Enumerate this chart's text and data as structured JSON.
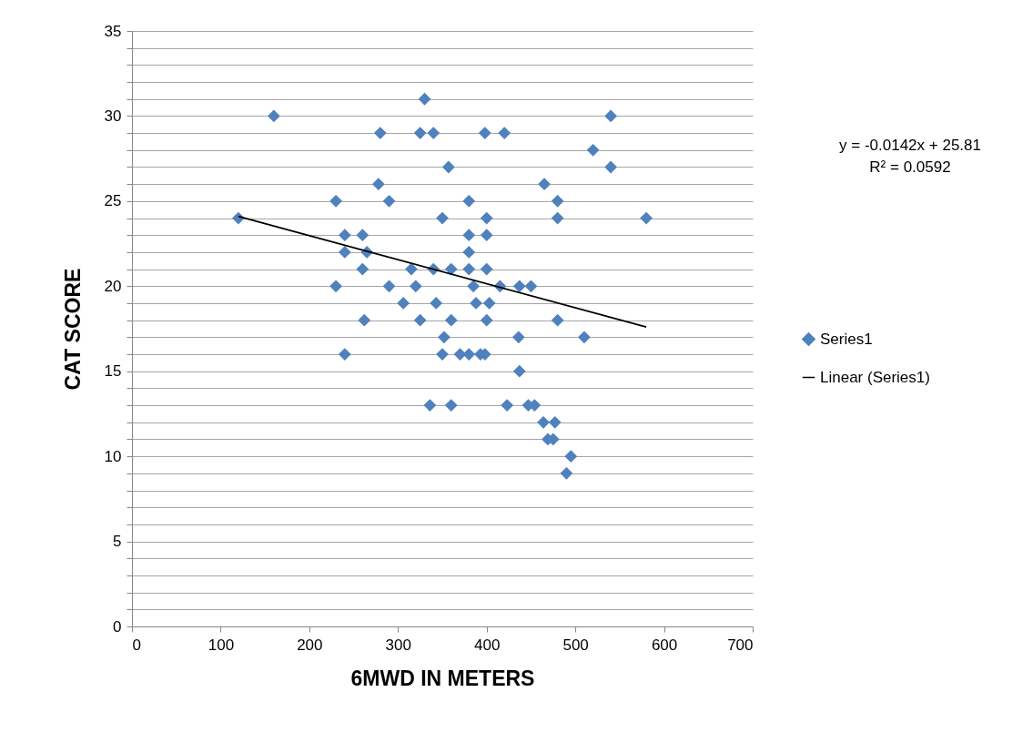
{
  "chart_data": {
    "type": "scatter",
    "xlabel": "6MWD IN METERS",
    "ylabel": "CAT SCORE",
    "annotations": [
      "y = -0.0142x + 25.81",
      "R² = 0.0592"
    ],
    "xlim": [
      0,
      700
    ],
    "xticks": [
      0,
      100,
      200,
      300,
      400,
      500,
      600,
      700
    ],
    "ylim": [
      0,
      35
    ],
    "yticks": [
      0,
      {
        "value": 1,
        "label": null
      },
      {
        "value": 2,
        "label": null
      },
      {
        "value": 3,
        "label": null
      },
      {
        "value": 4,
        "label": null
      },
      5,
      {
        "value": 6,
        "label": null
      },
      {
        "value": 7,
        "label": null
      },
      {
        "value": 8,
        "label": null
      },
      {
        "value": 9,
        "label": null
      },
      10,
      {
        "value": 11,
        "label": null
      },
      {
        "value": 12,
        "label": null
      },
      {
        "value": 13,
        "label": null
      },
      {
        "value": 14,
        "label": null
      },
      15,
      {
        "value": 16,
        "label": null
      },
      {
        "value": 17,
        "label": null
      },
      {
        "value": 18,
        "label": null
      },
      {
        "value": 19,
        "label": null
      },
      20,
      {
        "value": 21,
        "label": null
      },
      {
        "value": 22,
        "label": null
      },
      {
        "value": 23,
        "label": null
      },
      {
        "value": 24,
        "label": null
      },
      25,
      {
        "value": 26,
        "label": null
      },
      {
        "value": 27,
        "label": null
      },
      {
        "value": 28,
        "label": null
      },
      {
        "value": 29,
        "label": null
      },
      30,
      {
        "value": 31,
        "label": null
      },
      {
        "value": 32,
        "label": null
      },
      {
        "value": 33,
        "label": null
      },
      {
        "value": 34,
        "label": null
      },
      35
    ],
    "grid": "y",
    "legend": "right",
    "series": [
      {
        "name": "Series1",
        "marker": "diamond",
        "color": "#4f81bd",
        "x": [
          330,
          160,
          540,
          280,
          325,
          340,
          398,
          420,
          520,
          357,
          540,
          278,
          465,
          230,
          290,
          380,
          480,
          120,
          350,
          400,
          480,
          580,
          240,
          260,
          380,
          400,
          240,
          265,
          380,
          260,
          315,
          340,
          360,
          380,
          400,
          230,
          290,
          320,
          385,
          415,
          437,
          450,
          306,
          343,
          388,
          403,
          262,
          325,
          360,
          400,
          480,
          352,
          436,
          510,
          240,
          350,
          370,
          380,
          393,
          398,
          437,
          336,
          360,
          423,
          447,
          454,
          464,
          477,
          469,
          475,
          495,
          490
        ],
        "values": [
          31,
          30,
          30,
          29,
          29,
          29,
          29,
          29,
          28,
          27,
          27,
          26,
          26,
          25,
          25,
          25,
          25,
          24,
          24,
          24,
          24,
          24,
          23,
          23,
          23,
          23,
          22,
          22,
          22,
          21,
          21,
          21,
          21,
          21,
          21,
          20,
          20,
          20,
          20,
          20,
          20,
          20,
          19,
          19,
          19,
          19,
          18,
          18,
          18,
          18,
          18,
          17,
          17,
          17,
          16,
          16,
          16,
          16,
          16,
          16,
          15,
          13,
          13,
          13,
          13,
          13,
          12,
          12,
          11,
          11,
          10,
          9
        ]
      },
      {
        "name": "Linear (Series1)",
        "type": "line",
        "line_style": "solid",
        "color": "#000000",
        "x": [
          120,
          580
        ],
        "values": [
          24.1,
          17.6
        ]
      }
    ]
  }
}
